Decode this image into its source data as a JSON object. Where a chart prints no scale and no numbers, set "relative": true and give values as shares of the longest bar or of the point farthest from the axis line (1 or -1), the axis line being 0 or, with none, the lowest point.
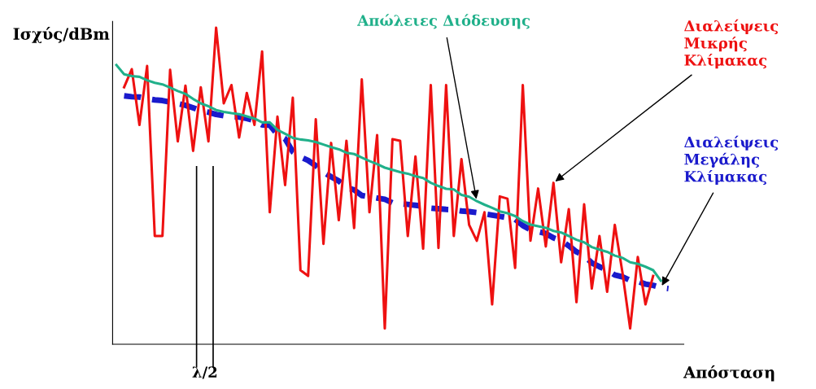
{
  "chart_data": {
    "type": "line",
    "relative": true,
    "xlabel": "Απόσταση",
    "ylabel": "Ισχύς/dBm",
    "legend": false,
    "marker": "none",
    "annotations": [
      "λ/2"
    ],
    "categories": [
      null,
      null,
      null,
      null,
      null,
      null,
      null,
      null,
      null,
      null,
      null,
      null,
      null,
      null,
      null,
      null,
      null,
      null,
      null,
      null,
      null,
      null,
      null,
      null,
      null,
      null,
      null,
      null,
      null,
      null,
      null,
      null,
      null,
      null,
      null,
      null,
      null,
      null,
      null,
      null,
      null,
      null,
      null,
      null,
      null,
      null,
      null,
      null,
      null,
      null,
      null,
      null,
      null,
      null,
      null,
      null,
      null,
      null,
      null,
      null,
      null,
      null,
      null,
      null,
      null,
      null,
      null,
      null,
      null,
      null,
      null,
      null,
      null
    ],
    "series": [
      {
        "name": "Διαλείψεις Μικρής Κλίμακας",
        "color": "#ee1111",
        "line_style": "solid",
        "values": [
          null,
          0.812,
          0.869,
          0.693,
          0.879,
          0.342,
          0.342,
          0.867,
          0.641,
          0.817,
          0.611,
          0.812,
          0.641,
          1.0,
          0.761,
          0.819,
          0.653,
          0.794,
          0.693,
          0.925,
          0.417,
          0.719,
          0.503,
          0.779,
          0.234,
          0.216,
          0.711,
          0.317,
          0.636,
          0.392,
          0.643,
          0.367,
          0.837,
          0.417,
          0.661,
          0.05,
          0.648,
          0.643,
          0.342,
          0.593,
          0.302,
          0.819,
          0.304,
          0.819,
          0.342,
          0.585,
          0.377,
          0.327,
          0.417,
          0.126,
          0.467,
          0.46,
          0.241,
          0.819,
          0.327,
          0.492,
          0.309,
          0.51,
          0.259,
          0.427,
          0.133,
          0.442,
          0.176,
          0.342,
          0.166,
          0.377,
          0.226,
          0.05,
          0.276,
          0.126,
          0.216,
          null,
          null
        ]
      },
      {
        "name": "Διαλείψεις Μεγάλης Κλίμακας",
        "color": "#1a1acc",
        "line_style": "dashed",
        "values": [
          null,
          0.785,
          0.782,
          0.781,
          0.776,
          0.772,
          0.77,
          0.765,
          0.76,
          0.755,
          0.747,
          0.738,
          0.733,
          0.726,
          0.722,
          0.719,
          0.718,
          0.713,
          0.707,
          0.693,
          0.692,
          0.663,
          0.649,
          0.608,
          0.592,
          0.581,
          0.564,
          0.544,
          0.529,
          0.516,
          0.495,
          0.488,
          0.47,
          0.466,
          0.462,
          0.458,
          0.447,
          0.444,
          0.442,
          0.439,
          0.436,
          0.43,
          0.428,
          0.426,
          0.425,
          0.421,
          0.419,
          0.416,
          0.412,
          0.408,
          0.404,
          0.4,
          0.395,
          0.375,
          0.362,
          0.356,
          0.35,
          0.336,
          0.327,
          0.311,
          0.292,
          0.28,
          0.257,
          0.245,
          0.234,
          0.219,
          0.213,
          0.202,
          0.199,
          0.19,
          0.186,
          0.179,
          0.176
        ]
      },
      {
        "name": "Απώλειες Διόδευσης",
        "color": "#20b08a",
        "line_style": "solid",
        "values": [
          0.882,
          0.853,
          0.847,
          0.845,
          0.834,
          0.826,
          0.821,
          0.811,
          0.8,
          0.791,
          0.775,
          0.761,
          0.752,
          0.74,
          0.734,
          0.73,
          0.727,
          0.72,
          0.713,
          0.701,
          0.701,
          0.677,
          0.665,
          0.652,
          0.647,
          0.644,
          0.639,
          0.631,
          0.623,
          0.616,
          0.605,
          0.601,
          0.59,
          0.579,
          0.569,
          0.558,
          0.551,
          0.544,
          0.539,
          0.531,
          0.525,
          0.51,
          0.5,
          0.491,
          0.489,
          0.472,
          0.466,
          0.452,
          0.441,
          0.431,
          0.42,
          0.414,
          0.405,
          0.389,
          0.378,
          0.373,
          0.368,
          0.358,
          0.353,
          0.342,
          0.33,
          0.322,
          0.307,
          0.299,
          0.292,
          0.28,
          0.273,
          0.259,
          0.254,
          0.245,
          0.234,
          0.201,
          null
        ]
      }
    ]
  }
}
